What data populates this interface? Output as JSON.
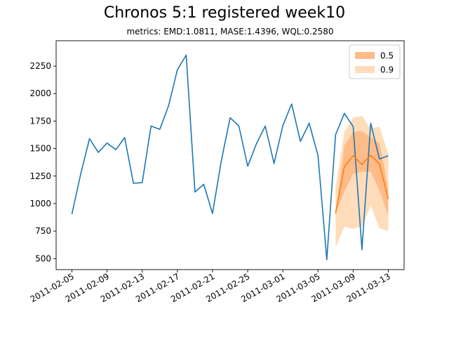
{
  "chart_data": {
    "type": "line",
    "title": "Chronos 5:1 registered week10",
    "subtitle": "metrics: EMD:1.0811, MASE:1.4396, WQL:0.2580",
    "xlabel": "",
    "ylabel": "",
    "ylim": [
      400,
      2480
    ],
    "y_ticks": [
      500,
      750,
      1000,
      1250,
      1500,
      1750,
      2000,
      2250
    ],
    "x_ticks": [
      "2011-02-05",
      "2011-02-09",
      "2011-02-13",
      "2011-02-17",
      "2011-02-21",
      "2011-02-25",
      "2011-03-01",
      "2011-03-05",
      "2011-03-09",
      "2011-03-13"
    ],
    "grid": false,
    "legend_position": "top-right",
    "colors": {
      "history": "#1f77b4",
      "forecast": "#ff7f0e"
    },
    "series": [
      {
        "values": [
          [
            "2011-02-05",
            905
          ],
          [
            "2011-02-06",
            1270
          ],
          [
            "2011-02-07",
            1590
          ],
          [
            "2011-02-08",
            1465
          ],
          [
            "2011-02-09",
            1550
          ],
          [
            "2011-02-10",
            1490
          ],
          [
            "2011-02-11",
            1600
          ],
          [
            "2011-02-12",
            1185
          ],
          [
            "2011-02-13",
            1190
          ],
          [
            "2011-02-14",
            1705
          ],
          [
            "2011-02-15",
            1675
          ],
          [
            "2011-02-16",
            1890
          ],
          [
            "2011-02-17",
            2215
          ],
          [
            "2011-02-18",
            2350
          ],
          [
            "2011-02-19",
            1105
          ],
          [
            "2011-02-20",
            1175
          ],
          [
            "2011-02-21",
            910
          ],
          [
            "2011-02-22",
            1390
          ],
          [
            "2011-02-23",
            1780
          ],
          [
            "2011-02-24",
            1705
          ],
          [
            "2011-02-25",
            1340
          ],
          [
            "2011-02-26",
            1545
          ],
          [
            "2011-02-27",
            1705
          ],
          [
            "2011-02-28",
            1365
          ],
          [
            "2011-03-01",
            1710
          ],
          [
            "2011-03-02",
            1905
          ],
          [
            "2011-03-03",
            1565
          ],
          [
            "2011-03-04",
            1730
          ],
          [
            "2011-03-05",
            1435
          ],
          [
            "2011-03-06",
            490
          ],
          [
            "2011-03-07",
            1625
          ],
          [
            "2011-03-08",
            1820
          ],
          [
            "2011-03-09",
            1700
          ],
          [
            "2011-03-10",
            580
          ],
          [
            "2011-03-11",
            1730
          ],
          [
            "2011-03-12",
            1405
          ],
          [
            "2011-03-13",
            1435
          ]
        ]
      },
      {
        "values": [
          [
            "2011-03-07",
            910
          ],
          [
            "2011-03-08",
            1335
          ],
          [
            "2011-03-09",
            1435
          ],
          [
            "2011-03-10",
            1355
          ],
          [
            "2011-03-11",
            1440
          ],
          [
            "2011-03-12",
            1360
          ],
          [
            "2011-03-13",
            1040
          ]
        ]
      }
    ],
    "bands": [
      {
        "name": "0.5",
        "color": "#ffbb88",
        "lower": [
          [
            "2011-03-07",
            910
          ],
          [
            "2011-03-08",
            1110
          ],
          [
            "2011-03-09",
            1270
          ],
          [
            "2011-03-10",
            1290
          ],
          [
            "2011-03-11",
            1290
          ],
          [
            "2011-03-12",
            1120
          ],
          [
            "2011-03-13",
            890
          ]
        ],
        "upper": [
          [
            "2011-03-07",
            910
          ],
          [
            "2011-03-08",
            1530
          ],
          [
            "2011-03-09",
            1650
          ],
          [
            "2011-03-10",
            1660
          ],
          [
            "2011-03-11",
            1600
          ],
          [
            "2011-03-12",
            1550
          ],
          [
            "2011-03-13",
            1130
          ]
        ]
      },
      {
        "name": "0.9",
        "color": "#ffddbb",
        "lower": [
          [
            "2011-03-07",
            600
          ],
          [
            "2011-03-08",
            790
          ],
          [
            "2011-03-09",
            770
          ],
          [
            "2011-03-10",
            790
          ],
          [
            "2011-03-11",
            980
          ],
          [
            "2011-03-12",
            775
          ],
          [
            "2011-03-13",
            750
          ]
        ],
        "upper": [
          [
            "2011-03-07",
            1150
          ],
          [
            "2011-03-08",
            1650
          ],
          [
            "2011-03-09",
            1780
          ],
          [
            "2011-03-10",
            1800
          ],
          [
            "2011-03-11",
            1680
          ],
          [
            "2011-03-12",
            1700
          ],
          [
            "2011-03-13",
            1450
          ]
        ]
      }
    ]
  }
}
